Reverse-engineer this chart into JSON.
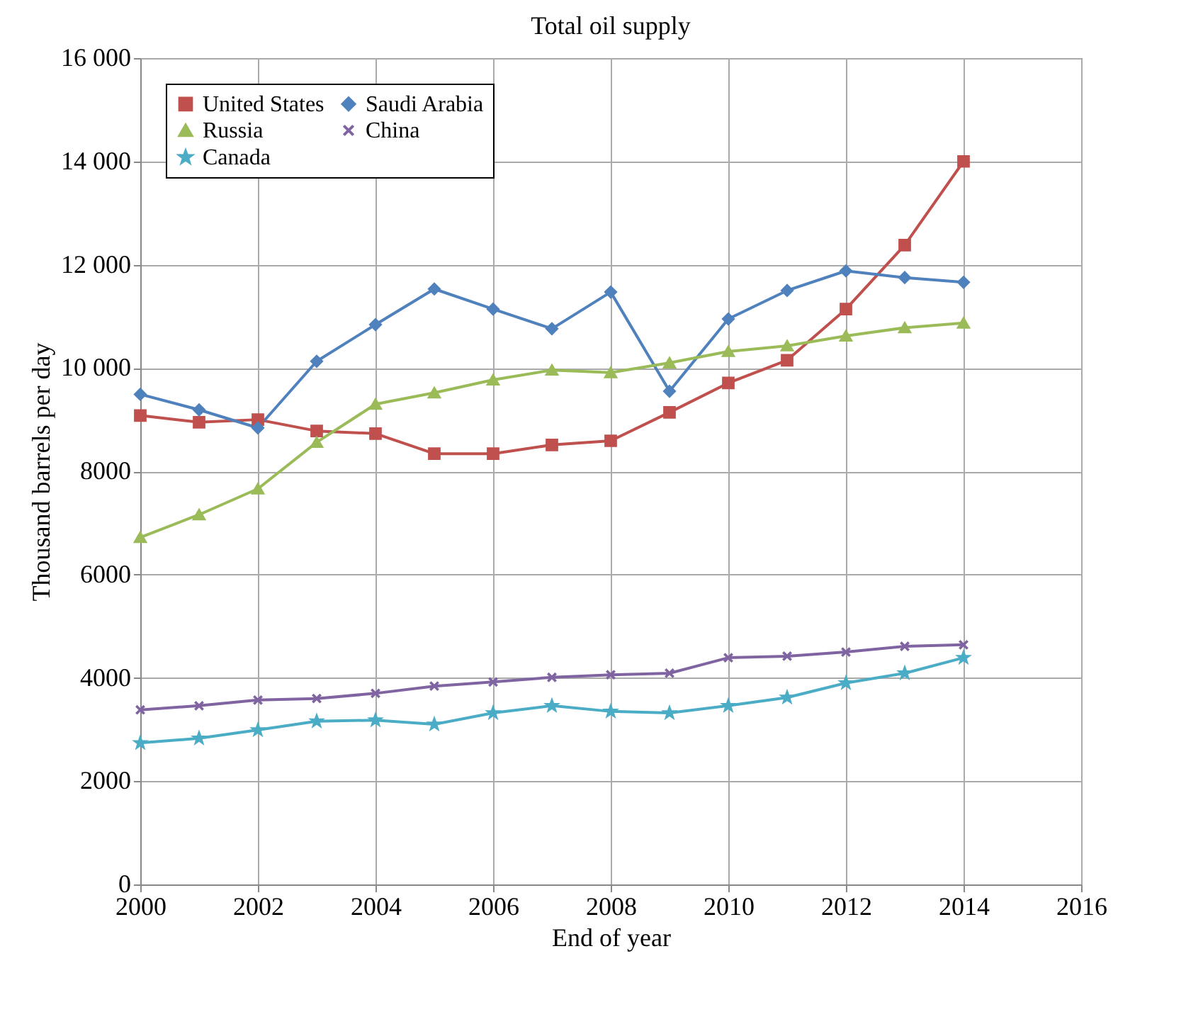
{
  "chart_data": {
    "type": "line",
    "title": "Total oil supply",
    "xlabel": "End of year",
    "ylabel": "Thousand barrels per day",
    "x": [
      2000,
      2001,
      2002,
      2003,
      2004,
      2005,
      2006,
      2007,
      2008,
      2009,
      2010,
      2011,
      2012,
      2013,
      2014
    ],
    "series": [
      {
        "name": "United States",
        "color": "#c0504d",
        "marker": "square",
        "values": [
          9080,
          8950,
          9000,
          8780,
          8730,
          8340,
          8340,
          8510,
          8590,
          9140,
          9710,
          10150,
          11140,
          12380,
          14000
        ]
      },
      {
        "name": "Saudi Arabia",
        "color": "#4f81bd",
        "marker": "diamond",
        "values": [
          9490,
          9190,
          8840,
          10130,
          10840,
          11530,
          11140,
          10760,
          11470,
          9550,
          10950,
          11500,
          11880,
          11750,
          11660
        ]
      },
      {
        "name": "Russia",
        "color": "#9bbb59",
        "marker": "triangle",
        "values": [
          6720,
          7160,
          7660,
          8560,
          9300,
          9520,
          9770,
          9960,
          9910,
          10100,
          10320,
          10430,
          10620,
          10780,
          10870
        ]
      },
      {
        "name": "China",
        "color": "#8064a2",
        "marker": "cross",
        "values": [
          3380,
          3460,
          3570,
          3600,
          3700,
          3840,
          3920,
          4010,
          4060,
          4090,
          4390,
          4420,
          4500,
          4610,
          4640
        ]
      },
      {
        "name": "Canada",
        "color": "#4bacc6",
        "marker": "star",
        "values": [
          2740,
          2830,
          2990,
          3160,
          3180,
          3100,
          3320,
          3460,
          3350,
          3320,
          3460,
          3620,
          3900,
          4090,
          4390
        ]
      }
    ],
    "xlim": [
      2000,
      2016
    ],
    "xticks": [
      2000,
      2002,
      2004,
      2006,
      2008,
      2010,
      2012,
      2014,
      2016
    ],
    "ylim": [
      0,
      16000
    ],
    "yticks": [
      0,
      2000,
      4000,
      6000,
      8000,
      {
        "value": 10000,
        "label": "10 000"
      },
      {
        "value": 12000,
        "label": "12 000"
      },
      {
        "value": 14000,
        "label": "14 000"
      },
      {
        "value": 16000,
        "label": "16 000"
      }
    ],
    "grid": true,
    "legend": "top left",
    "line_style": "solid"
  }
}
